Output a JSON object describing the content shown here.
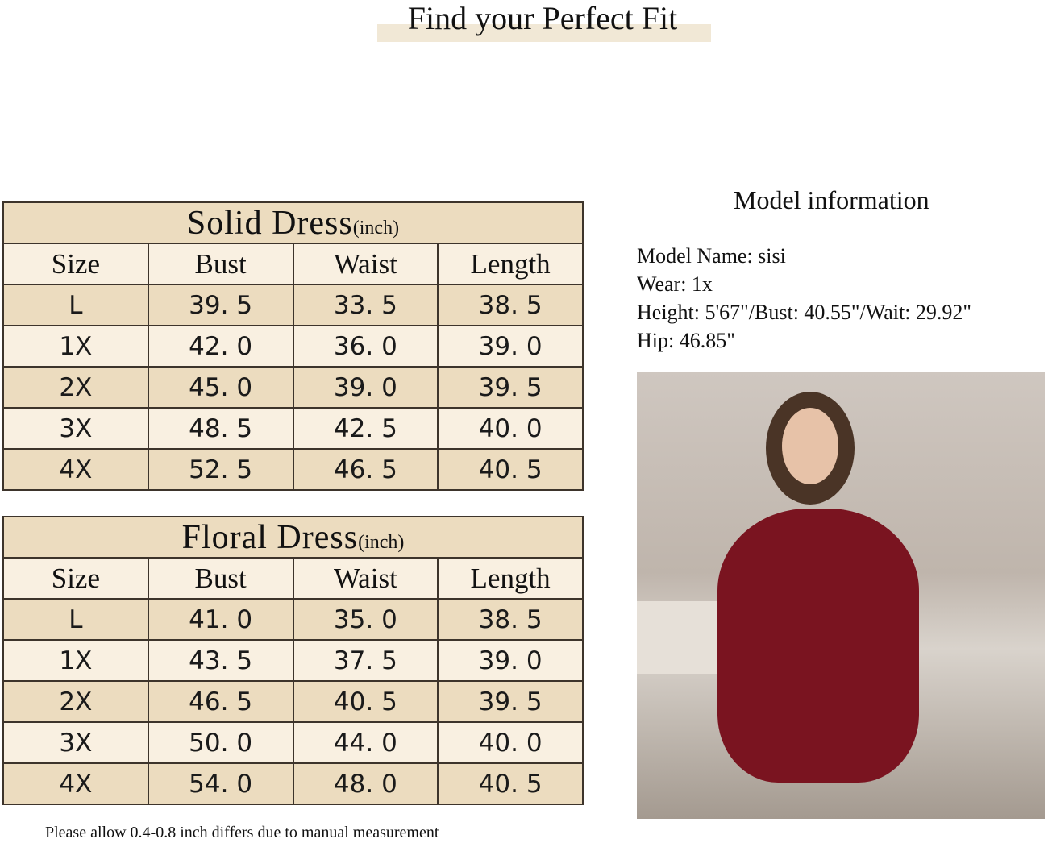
{
  "page_title": "Find your Perfect Fit",
  "unit": "(inch)",
  "columns": [
    "Size",
    "Bust",
    "Waist",
    "Length"
  ],
  "tables": [
    {
      "name": "Solid Dress",
      "rows": [
        [
          "L",
          "39. 5",
          "33. 5",
          "38. 5"
        ],
        [
          "1X",
          "42. 0",
          "36. 0",
          "39. 0"
        ],
        [
          "2X",
          "45. 0",
          "39. 0",
          "39. 5"
        ],
        [
          "3X",
          "48. 5",
          "42. 5",
          "40. 0"
        ],
        [
          "4X",
          "52. 5",
          "46. 5",
          "40. 5"
        ]
      ]
    },
    {
      "name": "Floral Dress",
      "rows": [
        [
          "L",
          "41. 0",
          "35. 0",
          "38. 5"
        ],
        [
          "1X",
          "43. 5",
          "37. 5",
          "39. 0"
        ],
        [
          "2X",
          "46. 5",
          "40. 5",
          "39. 5"
        ],
        [
          "3X",
          "50. 0",
          "44. 0",
          "40. 0"
        ],
        [
          "4X",
          "54. 0",
          "48. 0",
          "40. 5"
        ]
      ]
    }
  ],
  "footnote": "Please allow 0.4-0.8 inch differs due to manual measurement",
  "model": {
    "heading": "Model information",
    "lines": [
      "Model Name: sisi",
      "Wear: 1x",
      "Height: 5'67\"/Bust: 40.55\"/Wait: 29.92\"",
      "Hip: 46.85\""
    ]
  },
  "colors": {
    "band": "#ecdcbf",
    "light": "#f9f0e1",
    "border": "#3d342b",
    "dress": "#7a1420"
  }
}
